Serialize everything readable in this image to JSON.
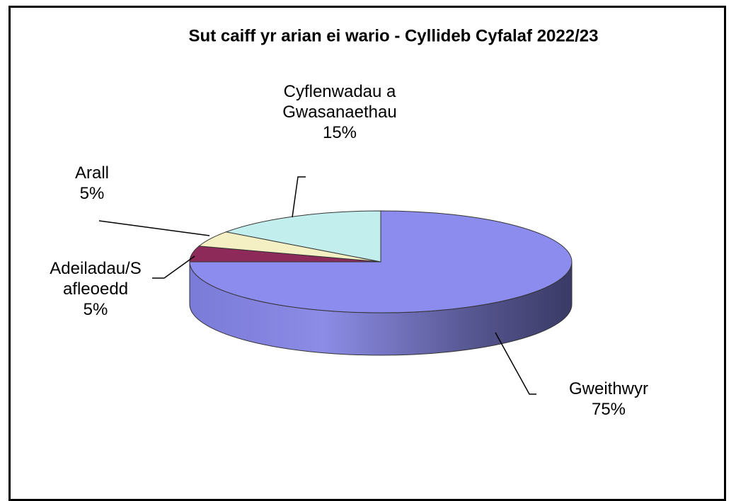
{
  "chart_data": {
    "type": "pie",
    "title": "Sut caiff yr arian ei wario - Cyllideb Cyfalaf 2022/23",
    "categories": [
      "Gweithwyr",
      "Adeiladau/Safleoedd",
      "Arall",
      "Cyflenwadau a Gwasanaethau"
    ],
    "values": [
      75,
      5,
      5,
      15
    ],
    "value_labels": [
      "75%",
      "5%",
      "5%",
      "15%"
    ],
    "colors": [
      "#8c8cee",
      "#8e2a5a",
      "#f4f0c4",
      "#c2eeee"
    ]
  }
}
